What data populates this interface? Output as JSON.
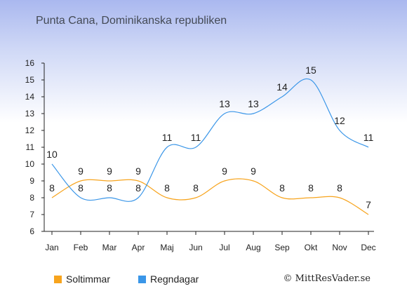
{
  "page_title": "Punta Cana, Dominikanska republiken",
  "copyright": "© MittResVader.se",
  "chart_data": {
    "type": "line",
    "categories": [
      "Jan",
      "Feb",
      "Mar",
      "Apr",
      "Maj",
      "Jun",
      "Jul",
      "Aug",
      "Sep",
      "Okt",
      "Nov",
      "Dec"
    ],
    "series": [
      {
        "name": "Soltimmar",
        "color": "#f7a41d",
        "values": [
          8,
          9,
          9,
          9,
          8,
          8,
          9,
          9,
          8,
          8,
          8,
          7
        ]
      },
      {
        "name": "Regndagar",
        "color": "#3a96e8",
        "values": [
          10,
          8,
          8,
          8,
          11,
          11,
          13,
          13,
          14,
          15,
          12,
          11
        ]
      }
    ],
    "yticks": [
      6,
      7,
      8,
      9,
      10,
      11,
      12,
      13,
      14,
      15,
      16
    ],
    "ylim": [
      6,
      16
    ],
    "grid": false,
    "legend_position": "bottom-left"
  }
}
